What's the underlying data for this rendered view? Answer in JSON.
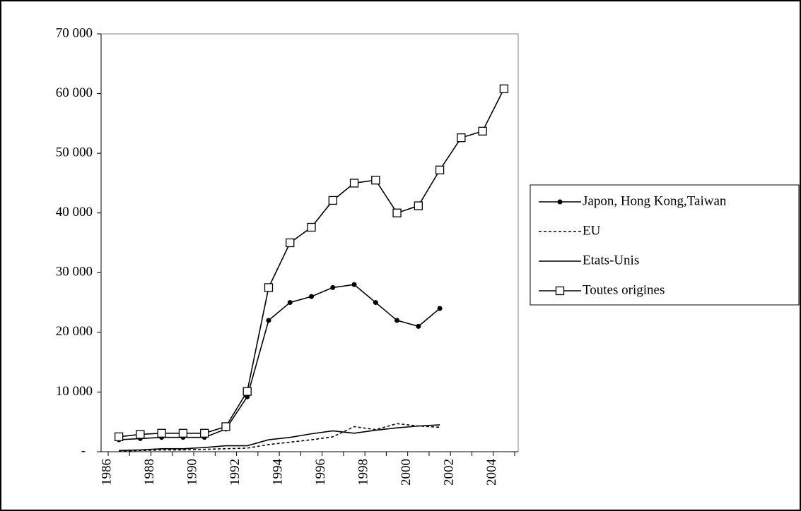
{
  "chart_data": {
    "type": "line",
    "categories": [
      "1986",
      null,
      "1988",
      null,
      "1990",
      null,
      "1992",
      null,
      "1994",
      null,
      "1996",
      null,
      "1998",
      null,
      "2000",
      null,
      "2002",
      null,
      "2004"
    ],
    "series": [
      {
        "name": "Japon, Hong Kong,Taiwan",
        "color": "#000000",
        "marker": "circle",
        "values": [
          2000,
          2200,
          2400,
          2400,
          2400,
          3800,
          9200,
          22000,
          25000,
          26000,
          27500,
          28000,
          25000,
          22000,
          21000,
          24000,
          null,
          null,
          null
        ]
      },
      {
        "name": "EU",
        "color": "#000000",
        "line_style": "dashed",
        "values": [
          100,
          200,
          300,
          300,
          400,
          500,
          600,
          1200,
          1600,
          2000,
          2500,
          4200,
          3700,
          4700,
          4300,
          4100,
          null,
          null,
          null
        ]
      },
      {
        "name": "Etats-Unis",
        "color": "#000000",
        "values": [
          200,
          300,
          500,
          500,
          700,
          1000,
          1000,
          2000,
          2400,
          3000,
          3500,
          3100,
          3600,
          4000,
          4300,
          4500,
          null,
          null,
          null
        ]
      },
      {
        "name": "Toutes origines",
        "color": "#000000",
        "marker": "square",
        "values": [
          2500,
          2900,
          3100,
          3100,
          3100,
          4200,
          10100,
          27500,
          35000,
          37600,
          42100,
          45000,
          45500,
          40000,
          41200,
          47200,
          52600,
          53700,
          60800
        ]
      }
    ],
    "ylim": [
      0,
      70000
    ],
    "yticks": [
      {
        "value": 0,
        "label": "-"
      },
      {
        "value": 10000,
        "label": "10 000"
      },
      {
        "value": 20000,
        "label": "20 000"
      },
      {
        "value": 30000,
        "label": "30 000"
      },
      {
        "value": 40000,
        "label": "40 000"
      },
      {
        "value": 50000,
        "label": "50 000"
      },
      {
        "value": 60000,
        "label": "60 000"
      },
      {
        "value": 70000,
        "label": "70 000"
      }
    ],
    "legend": "right"
  }
}
